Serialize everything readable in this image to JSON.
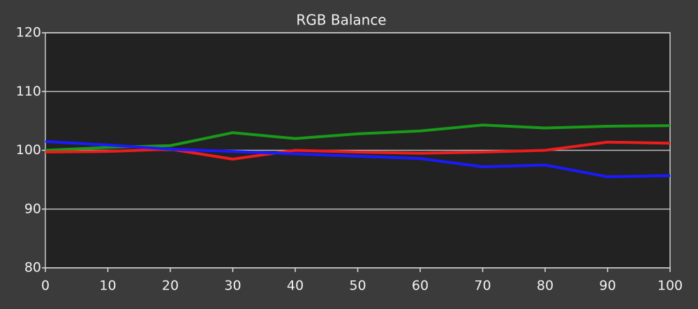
{
  "chart_data": {
    "type": "line",
    "title": "RGB Balance",
    "x": [
      0,
      10,
      20,
      30,
      40,
      50,
      60,
      70,
      80,
      90,
      100
    ],
    "series": [
      {
        "color": "#1a9a1a",
        "values": [
          100,
          100.5,
          100.8,
          103,
          102,
          102.8,
          103.3,
          104.3,
          103.8,
          104.1,
          104.2
        ]
      },
      {
        "color": "#ee1c1c",
        "values": [
          99.7,
          99.8,
          100.2,
          98.5,
          100,
          99.7,
          99.5,
          99.7,
          100,
          101.4,
          101.2
        ]
      },
      {
        "color": "#1a1aff",
        "values": [
          101.5,
          100.9,
          100.2,
          99.8,
          99.4,
          99,
          98.6,
          97.2,
          97.5,
          95.5,
          95.7
        ]
      }
    ],
    "xlim": [
      0,
      100
    ],
    "xticks": [
      0,
      10,
      20,
      30,
      40,
      50,
      60,
      70,
      80,
      90,
      100
    ],
    "ylim": [
      80,
      120
    ],
    "yticks": [
      80,
      90,
      100,
      110,
      120
    ],
    "grid": true
  }
}
